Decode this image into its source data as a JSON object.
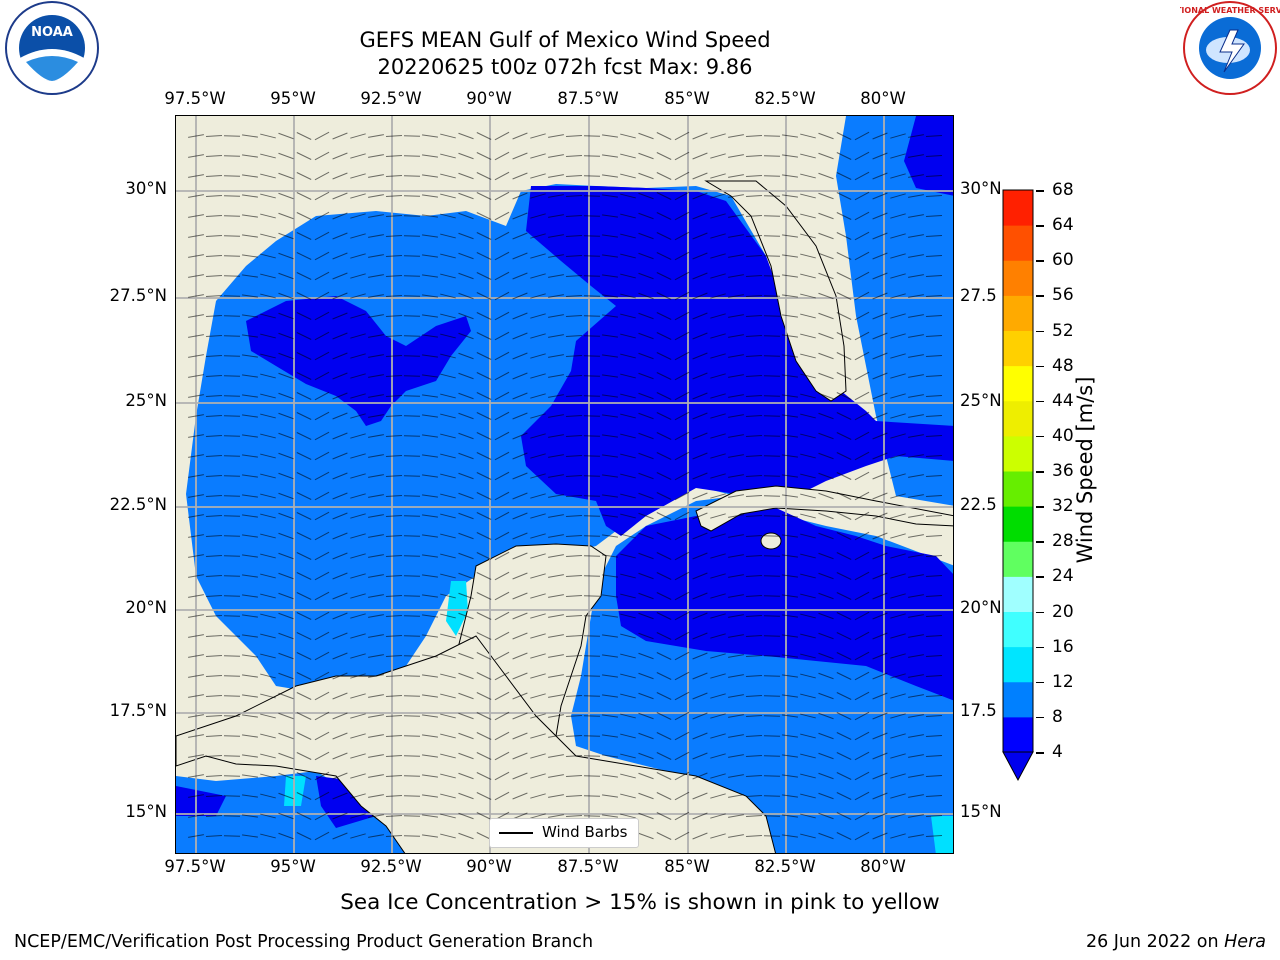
{
  "title": {
    "line1": "GEFS MEAN Gulf of Mexico Wind Speed",
    "line2": "20220625 t00z 072h fcst   Max: 9.86"
  },
  "logos": {
    "left": "NOAA",
    "right": "NATIONAL WEATHER SERVICE"
  },
  "axes": {
    "lon_labels": [
      "97.5°W",
      "95°W",
      "92.5°W",
      "90°W",
      "87.5°W",
      "85°W",
      "82.5°W",
      "80°W"
    ],
    "lat_labels": [
      "30°N",
      "27.5°N",
      "25°N",
      "22.5°N",
      "20°N",
      "17.5°N",
      "15°N"
    ],
    "right_lat_labels": [
      "30°N",
      "27.5",
      "25°N",
      "22.5",
      "20°N",
      "17.5",
      "15°N"
    ]
  },
  "legend": {
    "label": "Wind Barbs"
  },
  "colorbar": {
    "label": "Wind Speed [m/s]",
    "ticks": [
      "4",
      "8",
      "12",
      "16",
      "20",
      "24",
      "28",
      "32",
      "36",
      "40",
      "44",
      "48",
      "52",
      "56",
      "60",
      "64",
      "68"
    ],
    "colors": [
      "#0000ff",
      "#0080ff",
      "#00e5ff",
      "#40ffff",
      "#a0ffff",
      "#60ff60",
      "#00dd00",
      "#66ee00",
      "#ccff00",
      "#eeee00",
      "#ffff00",
      "#ffd000",
      "#ffaa00",
      "#ff8000",
      "#ff5000",
      "#ff2000"
    ],
    "extend_color": "#0000ee"
  },
  "colors": {
    "land": "#eeeddc",
    "light_blue": "#0a7cff",
    "dark_blue": "#0000f0",
    "cyan": "#00e0ff"
  },
  "subtitle": "Sea Ice Concentration > 15% is shown in pink to yellow",
  "footer": {
    "left": "NCEP/EMC/Verification Post Processing Product Generation Branch",
    "right_date": "26 Jun 2022 on ",
    "right_host": "Hera"
  }
}
